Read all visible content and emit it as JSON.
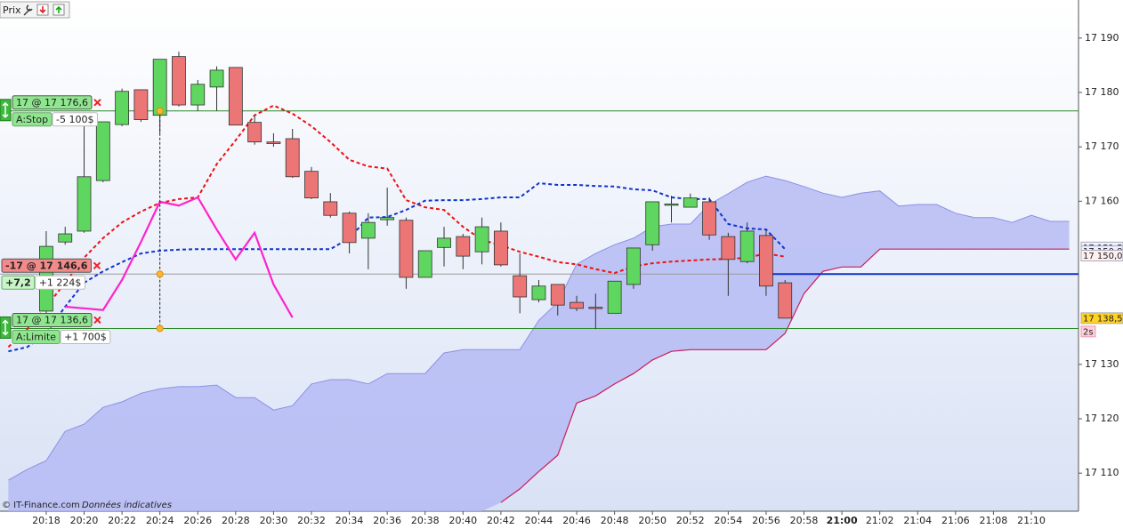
{
  "chart_data": {
    "type": "candlestick",
    "toolbar_label": "Prix",
    "footer": {
      "source": "© IT-Finance.com",
      "note": "Données indicatives"
    },
    "x": [
      1218,
      1219,
      1220,
      1221,
      1222,
      1223,
      1224,
      1225,
      1226,
      1227,
      1228,
      1229,
      1230,
      1231,
      1232,
      1233,
      1234,
      1235,
      1236,
      1237,
      1238,
      1239,
      1240,
      1241,
      1242,
      1243,
      1244,
      1245,
      1246,
      1247,
      1248,
      1249,
      1250,
      1251,
      1252,
      1253,
      1254,
      1255,
      1256,
      1257
    ],
    "open": [
      17139.8,
      17152.5,
      17154.5,
      17163.8,
      17174.1,
      17180.5,
      17175.8,
      17186.6,
      17177.7,
      17181.0,
      17184.6,
      17174.5,
      17170.9,
      17171.5,
      17165.5,
      17159.9,
      17157.8,
      17153.2,
      17156.6,
      17156.5,
      17146.0,
      17151.5,
      17153.5,
      17150.7,
      17154.5,
      17146.3,
      17141.9,
      17144.7,
      17141.4,
      17140.5,
      17139.4,
      17144.7,
      17152.0,
      17159.4,
      17158.9,
      17159.9,
      17153.5,
      17148.9,
      17153.7,
      17145.0
    ],
    "high": [
      17154.5,
      17155.3,
      17174.0,
      17174.6,
      17180.7,
      17180.5,
      17186.1,
      17187.5,
      17182.3,
      17184.8,
      17184.6,
      17175.8,
      17172.5,
      17173.3,
      17166.3,
      17161.5,
      17158.1,
      17157.8,
      17162.5,
      17157.0,
      17150.9,
      17155.3,
      17154.0,
      17157.0,
      17156.1,
      17150.4,
      17145.5,
      17144.7,
      17142.6,
      17143.0,
      17145.3,
      17151.4,
      17159.9,
      17161.0,
      17161.4,
      17160.7,
      17154.2,
      17156.1,
      17154.8,
      17145.5
    ],
    "low": [
      17139.0,
      17152.0,
      17154.2,
      17163.5,
      17173.8,
      17174.6,
      17172.5,
      17177.4,
      17176.6,
      17176.6,
      17174.0,
      17170.4,
      17170.0,
      17164.3,
      17160.4,
      17157.0,
      17150.4,
      17147.5,
      17155.5,
      17143.9,
      17146.0,
      17148.0,
      17147.5,
      17148.4,
      17148.0,
      17139.4,
      17141.4,
      17139.0,
      17139.8,
      17136.5,
      17139.4,
      17143.9,
      17150.9,
      17156.1,
      17158.9,
      17152.9,
      17142.6,
      17148.6,
      17142.6,
      17138.5
    ],
    "close": [
      17151.7,
      17154.0,
      17164.5,
      17174.6,
      17180.2,
      17175.0,
      17186.1,
      17177.7,
      17181.5,
      17184.1,
      17174.0,
      17170.9,
      17170.6,
      17164.5,
      17160.6,
      17157.4,
      17152.4,
      17156.1,
      17157.0,
      17146.0,
      17150.9,
      17153.2,
      17149.9,
      17155.3,
      17148.3,
      17142.4,
      17144.4,
      17140.9,
      17140.3,
      17140.4,
      17145.3,
      17151.4,
      17159.9,
      17159.5,
      17160.6,
      17153.8,
      17149.3,
      17154.5,
      17144.4,
      17138.5
    ],
    "up_color": "#5fd65f",
    "down_color": "#ec7676",
    "xlim": [
      1215.56,
      1272.49
    ],
    "ylim": [
      17103,
      17197
    ],
    "xticks": [
      {
        "value": 1218,
        "label": "20:18"
      },
      {
        "value": 1220,
        "label": "20:20"
      },
      {
        "value": 1222,
        "label": "20:22"
      },
      {
        "value": 1224,
        "label": "20:24"
      },
      {
        "value": 1226,
        "label": "20:26"
      },
      {
        "value": 1228,
        "label": "20:28"
      },
      {
        "value": 1230,
        "label": "20:30"
      },
      {
        "value": 1232,
        "label": "20:32"
      },
      {
        "value": 1234,
        "label": "20:34"
      },
      {
        "value": 1236,
        "label": "20:36"
      },
      {
        "value": 1238,
        "label": "20:38"
      },
      {
        "value": 1240,
        "label": "20:40"
      },
      {
        "value": 1242,
        "label": "20:42"
      },
      {
        "value": 1244,
        "label": "20:44"
      },
      {
        "value": 1246,
        "label": "20:46"
      },
      {
        "value": 1248,
        "label": "20:48"
      },
      {
        "value": 1250,
        "label": "20:50"
      },
      {
        "value": 1252,
        "label": "20:52"
      },
      {
        "value": 1254,
        "label": "20:54"
      },
      {
        "value": 1256,
        "label": "20:56"
      },
      {
        "value": 1258,
        "label": "20:58"
      },
      {
        "value": 1260,
        "label": "21:00"
      },
      {
        "value": 1262,
        "label": "21:02"
      },
      {
        "value": 1264,
        "label": "21:04"
      },
      {
        "value": 1266,
        "label": "21:06"
      },
      {
        "value": 1268,
        "label": "21:08"
      },
      {
        "value": 1270,
        "label": "21:10"
      }
    ],
    "bold_xtick": 1260,
    "yticks": [
      {
        "value": 17190,
        "label": "17 190"
      },
      {
        "value": 17180,
        "label": "17 180"
      },
      {
        "value": 17170,
        "label": "17 170"
      },
      {
        "value": 17160,
        "label": "17 160"
      },
      {
        "value": 17130,
        "label": "17 130"
      },
      {
        "value": 17120,
        "label": "17 120"
      },
      {
        "value": 17110,
        "label": "17 110"
      }
    ],
    "overlay_x": [
      1216,
      1217,
      1218,
      1219,
      1220,
      1221,
      1222,
      1223,
      1224,
      1225,
      1226,
      1227,
      1228,
      1229,
      1230,
      1231,
      1232,
      1233,
      1234,
      1235,
      1236,
      1237,
      1238,
      1239,
      1240,
      1241,
      1242,
      1243,
      1244,
      1245,
      1246,
      1247,
      1248,
      1249,
      1250,
      1251,
      1252,
      1253,
      1254,
      1255,
      1256,
      1257,
      1258,
      1259,
      1260,
      1261,
      1262,
      1263,
      1264,
      1265,
      1266,
      1267,
      1268,
      1269,
      1270,
      1271,
      1272
    ],
    "cloud": {
      "fill": "#b3b8f4",
      "upper_color": "#8c90e6",
      "lower_color": "#cc1b5a",
      "upper": [
        17108.7,
        17110.7,
        17112.3,
        17117.7,
        17119.0,
        17122.1,
        17123.1,
        17124.7,
        17125.5,
        17125.9,
        17125.9,
        17126.2,
        17123.9,
        17123.9,
        17121.6,
        17122.4,
        17126.4,
        17127.2,
        17127.2,
        17126.4,
        17128.3,
        17128.3,
        17128.3,
        17132.1,
        17132.7,
        17132.7,
        17132.7,
        17132.7,
        17138.1,
        17141.4,
        17148.4,
        17150.4,
        17152.0,
        17153.2,
        17155.3,
        17155.8,
        17155.8,
        17159.4,
        17161.4,
        17163.5,
        17164.6,
        17163.8,
        17162.7,
        17161.5,
        17160.7,
        17161.5,
        17161.9,
        17159.1,
        17159.4,
        17159.4,
        17157.8,
        17157.0,
        17157.0,
        17156.1,
        17157.4,
        17156.3,
        17156.3
      ],
      "lower": [
        null,
        null,
        null,
        null,
        null,
        null,
        null,
        null,
        null,
        null,
        null,
        null,
        null,
        null,
        null,
        null,
        null,
        null,
        null,
        null,
        null,
        null,
        null,
        null,
        null,
        null,
        17104.6,
        17107.1,
        17110.3,
        17113.3,
        17122.9,
        17124.2,
        17126.4,
        17128.3,
        17130.8,
        17132.4,
        17132.7,
        17132.7,
        17132.7,
        17132.7,
        17132.7,
        17135.7,
        17143.0,
        17147.1,
        17147.9,
        17147.9,
        17151.2,
        17151.2,
        17151.2,
        17151.2,
        17151.2,
        17151.2,
        17151.2,
        17151.2,
        17151.2,
        17151.2,
        17151.2
      ]
    },
    "overlays": [
      {
        "color": "#ee1111",
        "dashed": true,
        "values": [
          17133.2,
          17136.5,
          17140.6,
          17145.0,
          17149.6,
          17153.2,
          17156.1,
          17158.1,
          17159.7,
          17160.4,
          17160.7,
          17166.8,
          17171.2,
          17175.8,
          17177.6,
          17176.1,
          17173.8,
          17170.9,
          17167.6,
          17166.4,
          17166.0,
          17160.2,
          17158.9,
          17158.4,
          17155.3,
          17152.9,
          17151.9,
          17150.7,
          17149.8,
          17148.8,
          17148.4,
          17147.5,
          17146.8,
          17148.0,
          17148.6,
          17148.9,
          17149.1,
          17149.3,
          17149.4,
          17149.6,
          17150.4,
          17149.8,
          null,
          null,
          null,
          null,
          null,
          null,
          null,
          null,
          null,
          null,
          null,
          null,
          null,
          null,
          null
        ]
      },
      {
        "color": "#1133cc",
        "dashed": true,
        "values": [
          17132.4,
          17133.2,
          17135.7,
          17140.6,
          17145.0,
          17147.1,
          17148.8,
          17150.4,
          17150.9,
          17151.1,
          17151.2,
          17151.2,
          17151.2,
          17151.2,
          17151.2,
          17151.2,
          17151.2,
          17151.2,
          17153.2,
          17157.0,
          17157.1,
          17158.4,
          17160.1,
          17160.2,
          17160.2,
          17160.4,
          17160.7,
          17160.7,
          17163.3,
          17163.0,
          17163.0,
          17162.8,
          17162.7,
          17162.2,
          17162.0,
          17160.7,
          17160.4,
          17160.4,
          17155.8,
          17155.0,
          17154.8,
          17151.2,
          null,
          null,
          null,
          null,
          null,
          null,
          null,
          null,
          null,
          null,
          null,
          null,
          null,
          null,
          null
        ]
      },
      {
        "color": "#ff22cc",
        "dashed": false,
        "values": [
          null,
          null,
          null,
          17140.6,
          17140.3,
          17140.0,
          17145.5,
          17152.5,
          17159.9,
          17159.2,
          17160.7,
          17154.8,
          17149.3,
          17154.2,
          17144.7,
          17138.6,
          null,
          null,
          null,
          null,
          null,
          null,
          null,
          null,
          null,
          null,
          null,
          null,
          null,
          null,
          null,
          null,
          null,
          null,
          null,
          null,
          null,
          null,
          null,
          null,
          null,
          null,
          null,
          null,
          null,
          null,
          null,
          null,
          null,
          null,
          null,
          null,
          null,
          null,
          null,
          null,
          null
        ]
      }
    ],
    "orders": [
      {
        "label": "17 @ 17 176,6",
        "tag": "A:Stop",
        "pnl": "-5 100$",
        "price": 17176.6,
        "handle": true,
        "box": "#8fe68f",
        "tag_box": "#8fe68f",
        "pnl_color": "#cc2222",
        "line": "#2a8a2a"
      },
      {
        "label": "-17 @ 17 146,6",
        "tag": "+7,2",
        "pnl": "+1 224$",
        "price": 17146.6,
        "handle": false,
        "box": "#f28a8a",
        "tag_box": "#c8f5c8",
        "pnl_color": "#118811",
        "line": "#9a9a9a"
      },
      {
        "label": "17 @ 17 136,6",
        "tag": "A:Limite",
        "pnl": "+1 700$",
        "price": 17136.6,
        "handle": true,
        "box": "#8fe68f",
        "tag_box": "#8fe68f",
        "pnl_color": "#118811",
        "line": "#2a8a2a"
      }
    ],
    "execution_minute": 1224,
    "position_line": {
      "value": 17146.6,
      "from": 1256,
      "color": "#1030d0"
    },
    "price_labels": [
      {
        "value": 17151.5,
        "label": "17 151,5",
        "color": "#3344cc",
        "background": "#eef0ff"
      },
      {
        "value": 17150.8,
        "label": "17 150,8",
        "color": "#3344cc",
        "background": "#eef0ff"
      },
      {
        "value": 17150.0,
        "label": "17 150,0",
        "color": "#dd2222",
        "background": "#fff0f0"
      },
      {
        "value": 17138.5,
        "label": "17 138,5",
        "color": "#222222",
        "background": "#ffd21f"
      }
    ],
    "timer": "2s"
  }
}
